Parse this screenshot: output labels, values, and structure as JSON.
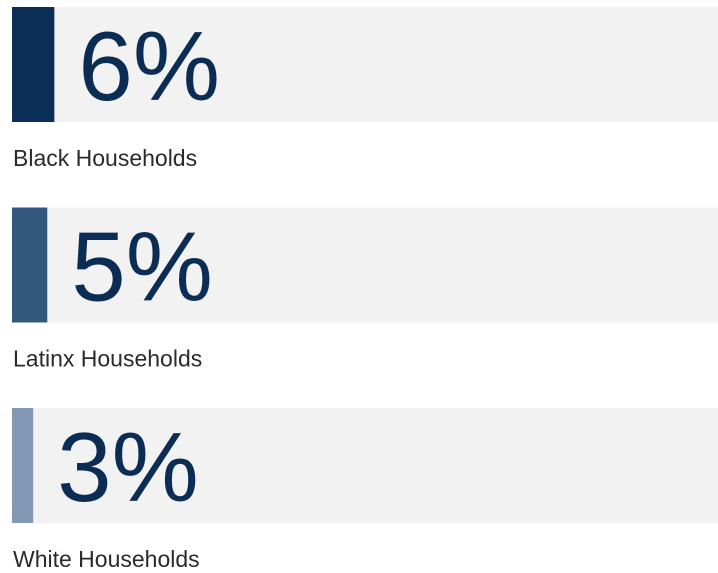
{
  "chart_data": {
    "type": "bar",
    "categories": [
      "Black Households",
      "Latinx Households",
      "White Households"
    ],
    "values": [
      6,
      5,
      3
    ],
    "value_labels": [
      "6%",
      "5%",
      "3%"
    ],
    "colors": [
      "#0b2e57",
      "#33587d",
      "#8399b3"
    ],
    "xlim": [
      0,
      100
    ]
  }
}
